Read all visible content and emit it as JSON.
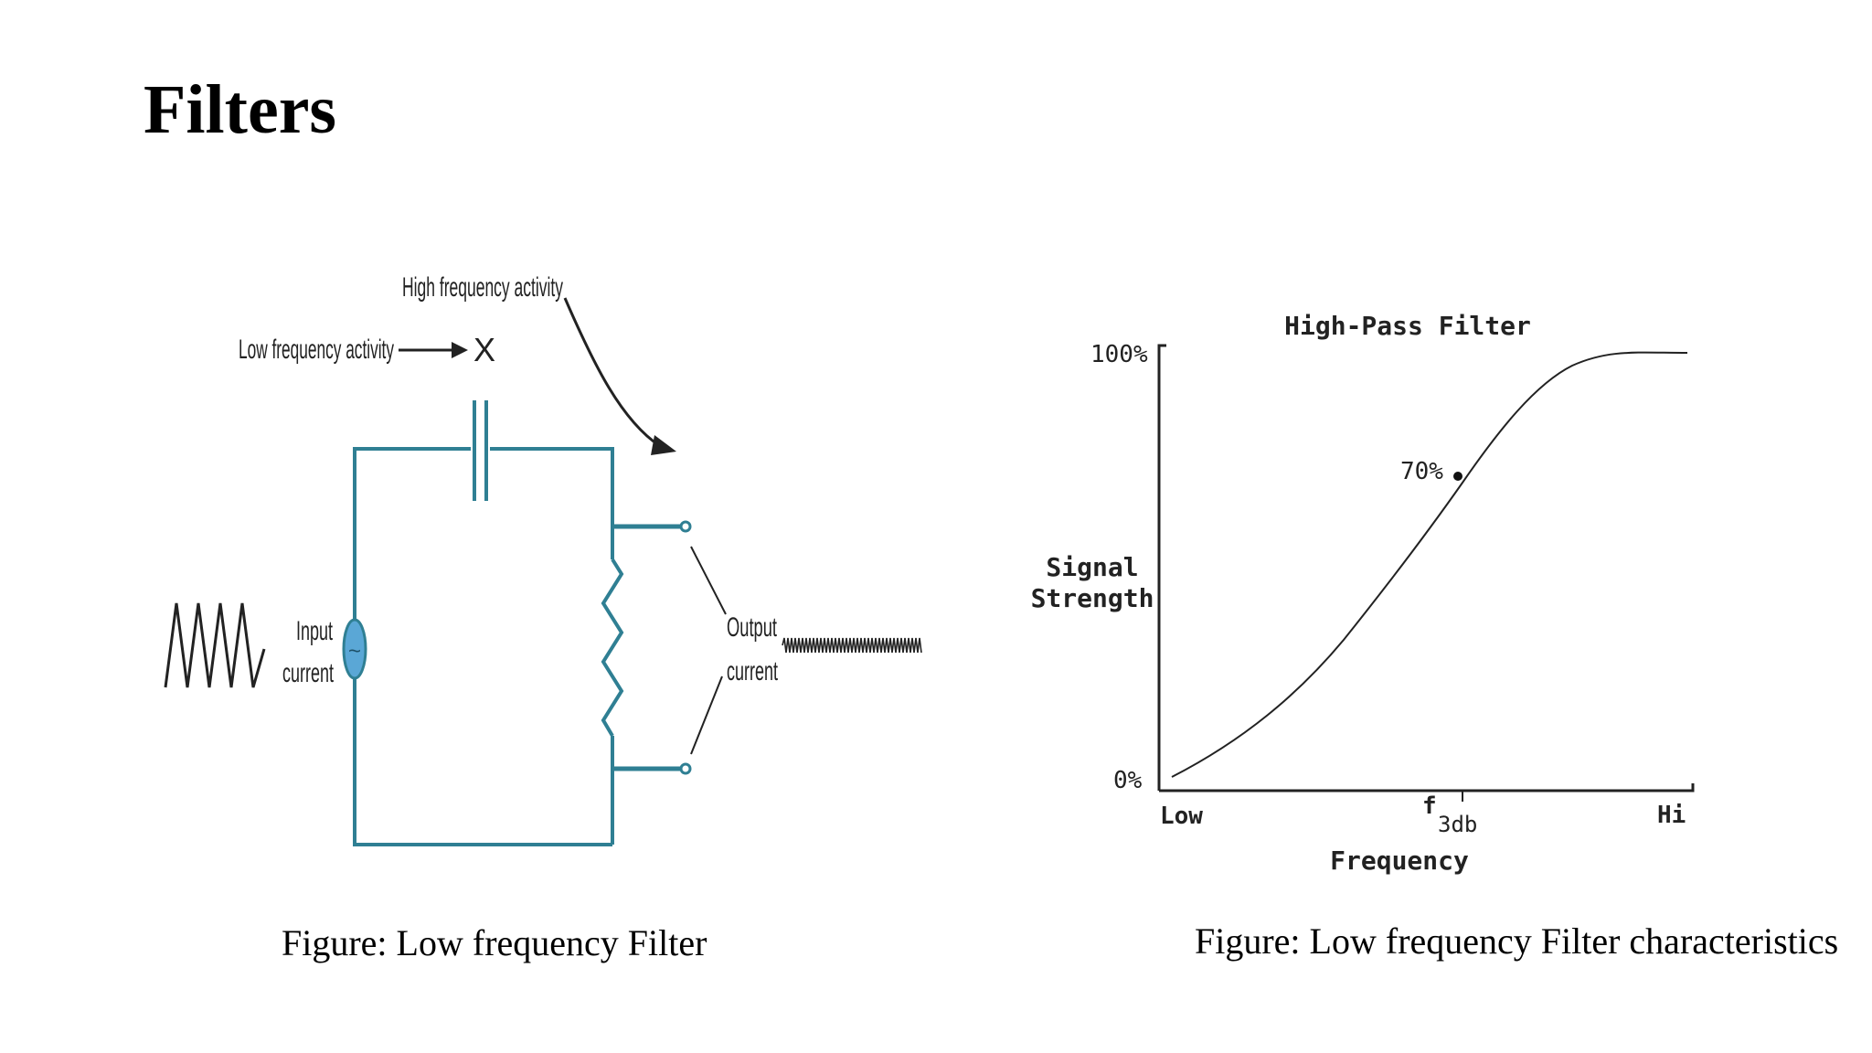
{
  "slide": {
    "title": "Filters"
  },
  "circuit": {
    "high_freq_label": "High frequency activity",
    "low_freq_label": "Low frequency activity",
    "blocked_mark": "X",
    "input_label_line1": "Input",
    "input_label_line2": "current",
    "output_label_line1": "Output",
    "output_label_line2": "current",
    "source_symbol": "~",
    "wire_color": "#2f7f93",
    "source_color": "#5aa7d6",
    "caption": "Figure: Low frequency Filter"
  },
  "graph": {
    "title": "High-Pass Filter",
    "y_top_label": "100%",
    "y_bottom_label": "0%",
    "point_label": "70%",
    "y_axis_label_line1": "Signal",
    "y_axis_label_line2": "Strength",
    "x_low_label": "Low",
    "x_mid_label_main": "f",
    "x_mid_label_sub": "3db",
    "x_high_label": "Hi",
    "x_axis_label": "Frequency",
    "caption": "Figure: Low frequency Filter characteristics"
  }
}
